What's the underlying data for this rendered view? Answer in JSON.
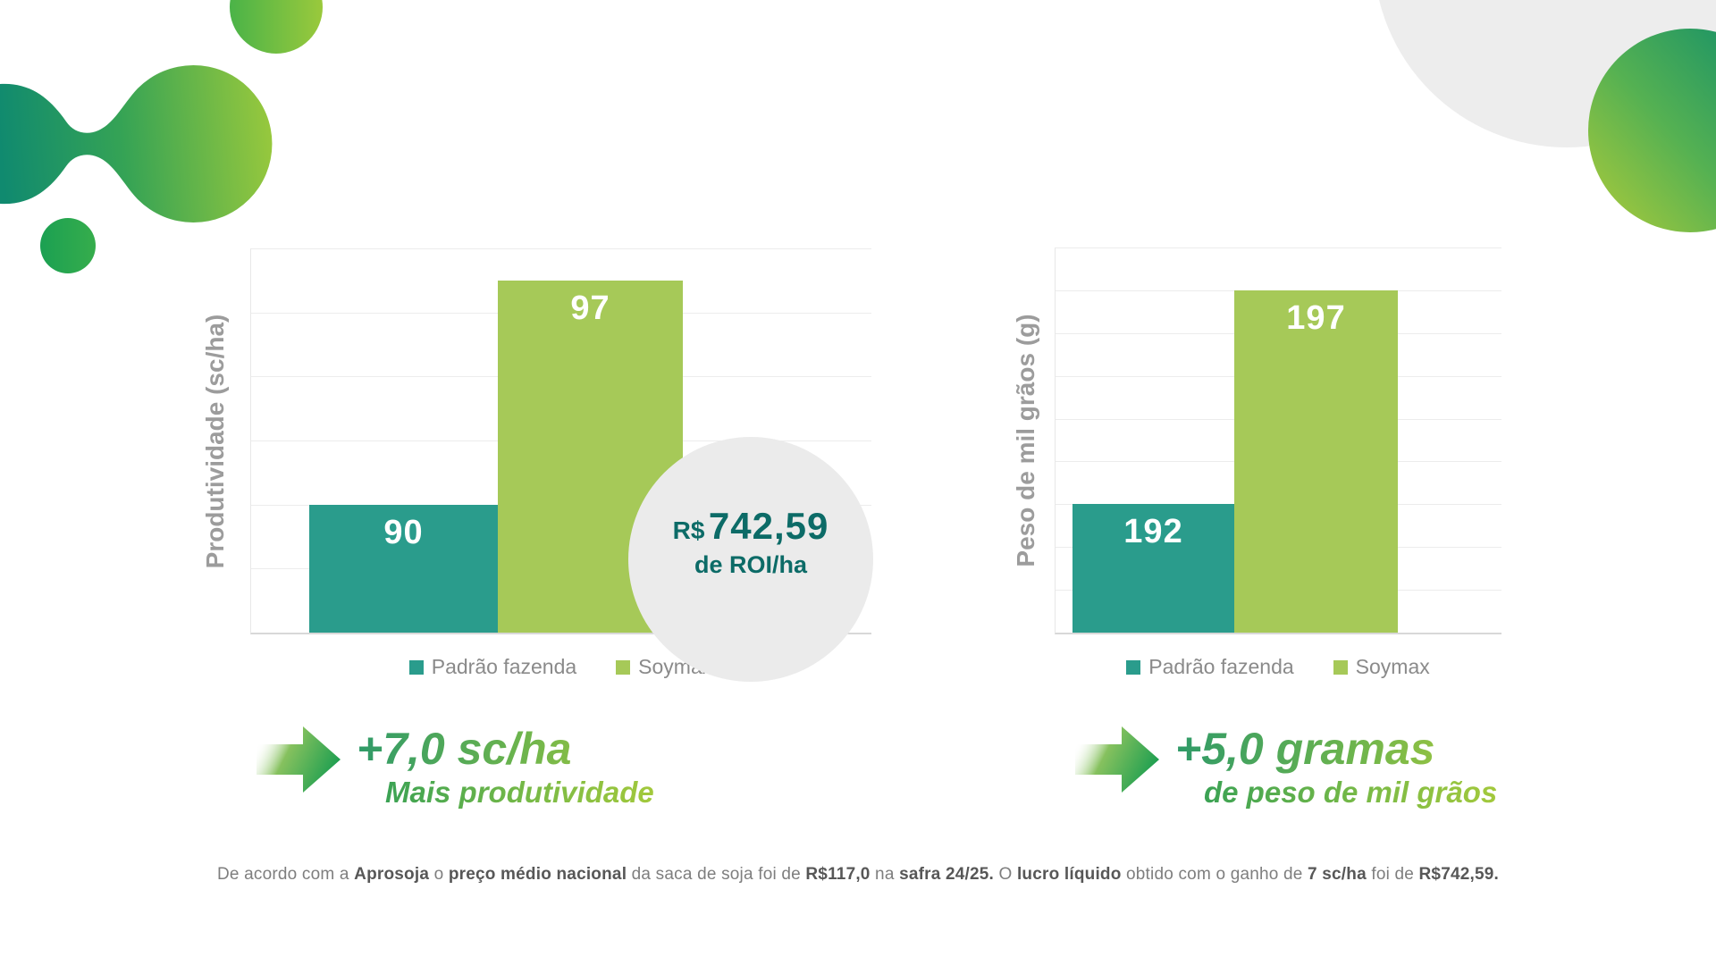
{
  "chart_data": [
    {
      "type": "bar",
      "title": "",
      "ylabel": "Produtividade (sc/ha)",
      "xlabel": "",
      "categories": [
        "Padrão fazenda",
        "Soymax"
      ],
      "values": [
        90,
        97
      ],
      "colors": [
        "#2a9c8c",
        "#a6c958"
      ],
      "ylim": [
        86,
        98
      ],
      "ytick_step": 2,
      "grid": true,
      "legend_position": "bottom"
    },
    {
      "type": "bar",
      "title": "",
      "ylabel": "Peso de mil grãos (g)",
      "xlabel": "",
      "categories": [
        "Padrão fazenda",
        "Soymax"
      ],
      "values": [
        192,
        197
      ],
      "colors": [
        "#2a9c8c",
        "#a6c958"
      ],
      "ylim": [
        189,
        198
      ],
      "ytick_step": 1,
      "grid": true,
      "legend_position": "bottom"
    }
  ],
  "roi": {
    "currency": "R$",
    "amount": "742,59",
    "caption": "de ROI/ha",
    "text_color": "#0c6b67",
    "bg_color": "#ebebeb"
  },
  "annotations": [
    {
      "title": "+7,0 sc/ha",
      "subtitle": "Mais produtividade"
    },
    {
      "title": "+5,0 gramas",
      "subtitle": "de peso de mil grãos"
    }
  ],
  "footnote": {
    "segments": [
      {
        "text": "De acordo com a ",
        "bold": false
      },
      {
        "text": "Aprosoja",
        "bold": true
      },
      {
        "text": " o ",
        "bold": false
      },
      {
        "text": "preço médio nacional",
        "bold": true
      },
      {
        "text": " da saca de soja foi de ",
        "bold": false
      },
      {
        "text": "R$117,0",
        "bold": true
      },
      {
        "text": " na ",
        "bold": false
      },
      {
        "text": "safra 24/25.",
        "bold": true
      },
      {
        "text": " O ",
        "bold": false
      },
      {
        "text": "lucro líquido",
        "bold": true
      },
      {
        "text": " obtido com o ganho de ",
        "bold": false
      },
      {
        "text": "7 sc/ha",
        "bold": true
      },
      {
        "text": " foi de ",
        "bold": false
      },
      {
        "text": "R$742,59.",
        "bold": true
      }
    ]
  },
  "theme": {
    "teal": "#2a9c8c",
    "green": "#a6c958",
    "gridline": "#ececec",
    "axis_label_gray": "#9c9c9c",
    "legend_gray": "#8a8a8a"
  }
}
